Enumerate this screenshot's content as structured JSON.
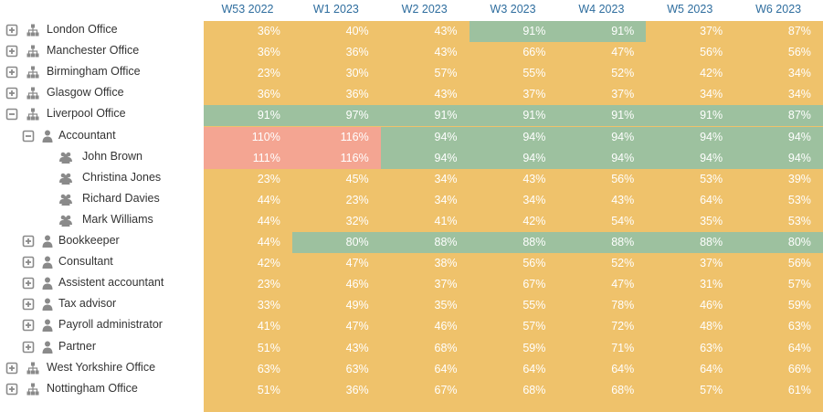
{
  "columns": [
    "W53 2022",
    "W1 2023",
    "W2 2023",
    "W3 2023",
    "W4 2023",
    "W5 2023",
    "W6 2023"
  ],
  "rows": [
    {
      "label": "London Office",
      "level": 0,
      "icon": "office",
      "toggle": "plus",
      "values": [
        "36%",
        "40%",
        "43%",
        "91%",
        "91%",
        "37%",
        "87%"
      ],
      "colors": [
        "#efc26b",
        "#efc26b",
        "#efc26b",
        "#9dc19f",
        "#9dc19f",
        "#efc26b",
        "#efc26b"
      ]
    },
    {
      "label": "Manchester Office",
      "level": 0,
      "icon": "office",
      "toggle": "plus",
      "values": [
        "36%",
        "36%",
        "43%",
        "66%",
        "47%",
        "56%",
        "56%"
      ],
      "colors": [
        "#efc26b",
        "#efc26b",
        "#efc26b",
        "#efc26b",
        "#efc26b",
        "#efc26b",
        "#efc26b"
      ]
    },
    {
      "label": "Birmingham Office",
      "level": 0,
      "icon": "office",
      "toggle": "plus",
      "values": [
        "23%",
        "30%",
        "57%",
        "55%",
        "52%",
        "42%",
        "34%"
      ],
      "colors": [
        "#efc26b",
        "#efc26b",
        "#efc26b",
        "#efc26b",
        "#efc26b",
        "#efc26b",
        "#efc26b"
      ]
    },
    {
      "label": "Glasgow Office",
      "level": 0,
      "icon": "office",
      "toggle": "plus",
      "values": [
        "36%",
        "36%",
        "43%",
        "37%",
        "37%",
        "34%",
        "34%"
      ],
      "colors": [
        "#efc26b",
        "#efc26b",
        "#efc26b",
        "#efc26b",
        "#efc26b",
        "#efc26b",
        "#efc26b"
      ]
    },
    {
      "label": "Liverpool Office",
      "level": 0,
      "icon": "office",
      "toggle": "minus",
      "values": [
        "91%",
        "97%",
        "91%",
        "91%",
        "91%",
        "91%",
        "87%"
      ],
      "colors": [
        "#9dc19f",
        "#9dc19f",
        "#9dc19f",
        "#9dc19f",
        "#9dc19f",
        "#9dc19f",
        "#9dc19f"
      ]
    },
    {
      "label": "Accountant",
      "level": 1,
      "icon": "role",
      "toggle": "minus",
      "values": [
        "110%",
        "116%",
        "94%",
        "94%",
        "94%",
        "94%",
        "94%"
      ],
      "colors": [
        "#f4a592",
        "#f4a592",
        "#9dc19f",
        "#9dc19f",
        "#9dc19f",
        "#9dc19f",
        "#9dc19f"
      ]
    },
    {
      "label": "John Brown",
      "level": 2,
      "icon": "person",
      "values": [
        "111%",
        "116%",
        "94%",
        "94%",
        "94%",
        "94%",
        "94%"
      ],
      "colors": [
        "#f4a592",
        "#f4a592",
        "#9dc19f",
        "#9dc19f",
        "#9dc19f",
        "#9dc19f",
        "#9dc19f"
      ]
    },
    {
      "label": "Christina Jones",
      "level": 2,
      "icon": "person",
      "values": [
        "23%",
        "45%",
        "34%",
        "43%",
        "56%",
        "53%",
        "39%"
      ],
      "colors": [
        "#efc26b",
        "#efc26b",
        "#efc26b",
        "#efc26b",
        "#efc26b",
        "#efc26b",
        "#efc26b"
      ]
    },
    {
      "label": "Richard Davies",
      "level": 2,
      "icon": "person",
      "values": [
        "44%",
        "23%",
        "34%",
        "34%",
        "43%",
        "64%",
        "53%"
      ],
      "colors": [
        "#efc26b",
        "#efc26b",
        "#efc26b",
        "#efc26b",
        "#efc26b",
        "#efc26b",
        "#efc26b"
      ]
    },
    {
      "label": "Mark Williams",
      "level": 2,
      "icon": "person",
      "values": [
        "44%",
        "32%",
        "41%",
        "42%",
        "54%",
        "35%",
        "53%"
      ],
      "colors": [
        "#efc26b",
        "#efc26b",
        "#efc26b",
        "#efc26b",
        "#efc26b",
        "#efc26b",
        "#efc26b"
      ]
    },
    {
      "label": "Bookkeeper",
      "level": 1,
      "icon": "role",
      "toggle": "plus",
      "values": [
        "44%",
        "80%",
        "88%",
        "88%",
        "88%",
        "88%",
        "80%"
      ],
      "colors": [
        "#efc26b",
        "#9dc19f",
        "#9dc19f",
        "#9dc19f",
        "#9dc19f",
        "#9dc19f",
        "#9dc19f"
      ]
    },
    {
      "label": "Consultant",
      "level": 1,
      "icon": "role",
      "toggle": "plus",
      "values": [
        "42%",
        "47%",
        "38%",
        "56%",
        "52%",
        "37%",
        "56%"
      ],
      "colors": [
        "#efc26b",
        "#efc26b",
        "#efc26b",
        "#efc26b",
        "#efc26b",
        "#efc26b",
        "#efc26b"
      ]
    },
    {
      "label": "Assistent accountant",
      "level": 1,
      "icon": "role",
      "toggle": "plus",
      "values": [
        "23%",
        "46%",
        "37%",
        "67%",
        "47%",
        "31%",
        "57%"
      ],
      "colors": [
        "#efc26b",
        "#efc26b",
        "#efc26b",
        "#efc26b",
        "#efc26b",
        "#efc26b",
        "#efc26b"
      ]
    },
    {
      "label": "Tax advisor",
      "level": 1,
      "icon": "role",
      "toggle": "plus",
      "values": [
        "33%",
        "49%",
        "35%",
        "55%",
        "78%",
        "46%",
        "59%"
      ],
      "colors": [
        "#efc26b",
        "#efc26b",
        "#efc26b",
        "#efc26b",
        "#efc26b",
        "#efc26b",
        "#efc26b"
      ]
    },
    {
      "label": "Payroll administrator",
      "level": 1,
      "icon": "role",
      "toggle": "plus",
      "values": [
        "41%",
        "47%",
        "46%",
        "57%",
        "72%",
        "48%",
        "63%"
      ],
      "colors": [
        "#efc26b",
        "#efc26b",
        "#efc26b",
        "#efc26b",
        "#efc26b",
        "#efc26b",
        "#efc26b"
      ]
    },
    {
      "label": "Partner",
      "level": 1,
      "icon": "role",
      "toggle": "plus",
      "values": [
        "51%",
        "43%",
        "68%",
        "59%",
        "71%",
        "63%",
        "64%"
      ],
      "colors": [
        "#efc26b",
        "#efc26b",
        "#efc26b",
        "#efc26b",
        "#efc26b",
        "#efc26b",
        "#efc26b"
      ]
    },
    {
      "label": "West Yorkshire Office",
      "level": 0,
      "icon": "office",
      "toggle": "plus",
      "values": [
        "63%",
        "63%",
        "64%",
        "64%",
        "64%",
        "64%",
        "66%"
      ],
      "colors": [
        "#efc26b",
        "#efc26b",
        "#efc26b",
        "#efc26b",
        "#efc26b",
        "#efc26b",
        "#efc26b"
      ]
    },
    {
      "label": "Nottingham Office",
      "level": 0,
      "icon": "office",
      "toggle": "plus",
      "values": [
        "51%",
        "36%",
        "67%",
        "68%",
        "68%",
        "57%",
        "61%"
      ],
      "colors": [
        "#efc26b",
        "#efc26b",
        "#efc26b",
        "#efc26b",
        "#efc26b",
        "#efc26b",
        "#efc26b"
      ]
    }
  ]
}
